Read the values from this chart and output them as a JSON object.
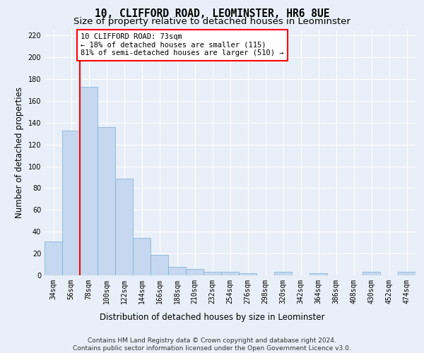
{
  "title": "10, CLIFFORD ROAD, LEOMINSTER, HR6 8UE",
  "subtitle": "Size of property relative to detached houses in Leominster",
  "xlabel": "Distribution of detached houses by size in Leominster",
  "ylabel": "Number of detached properties",
  "bar_values": [
    31,
    133,
    173,
    136,
    89,
    34,
    19,
    8,
    6,
    3,
    3,
    2,
    0,
    3,
    0,
    2,
    0,
    0,
    3,
    0,
    3
  ],
  "bar_labels": [
    "34sqm",
    "56sqm",
    "78sqm",
    "100sqm",
    "122sqm",
    "144sqm",
    "166sqm",
    "188sqm",
    "210sqm",
    "232sqm",
    "254sqm",
    "276sqm",
    "298sqm",
    "320sqm",
    "342sqm",
    "364sqm",
    "386sqm",
    "408sqm",
    "430sqm",
    "452sqm",
    "474sqm"
  ],
  "bar_color": "#c5d8f0",
  "bar_edge_color": "#7aadd4",
  "vline_color": "red",
  "vline_x": 1.5,
  "annotation_text": "10 CLIFFORD ROAD: 73sqm\n← 18% of detached houses are smaller (115)\n81% of semi-detached houses are larger (510) →",
  "ylim": [
    0,
    225
  ],
  "yticks": [
    0,
    20,
    40,
    60,
    80,
    100,
    120,
    140,
    160,
    180,
    200,
    220
  ],
  "footer": "Contains HM Land Registry data © Crown copyright and database right 2024.\nContains public sector information licensed under the Open Government Licence v3.0.",
  "bg_color": "#e8eff8",
  "plot_bg_color": "#e8eff8",
  "grid_color": "#ffffff",
  "title_fontsize": 10.5,
  "subtitle_fontsize": 9.5,
  "tick_fontsize": 7,
  "ylabel_fontsize": 8.5,
  "xlabel_fontsize": 8.5,
  "footer_fontsize": 6.5,
  "annot_fontsize": 7.5
}
